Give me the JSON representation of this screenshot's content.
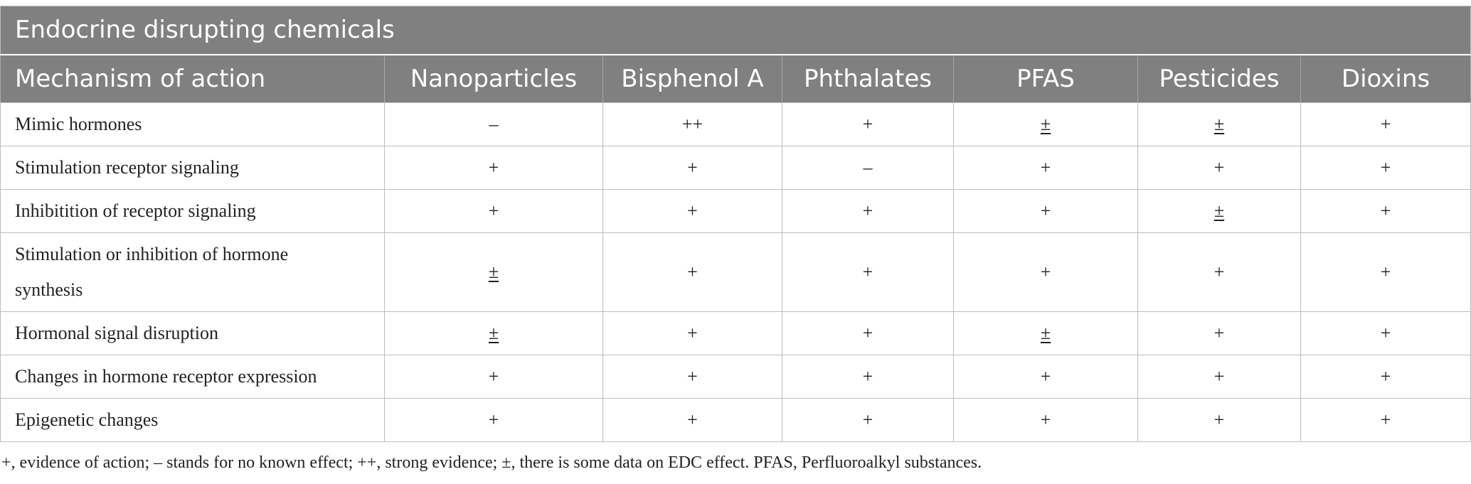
{
  "table": {
    "caption": "Endocrine disrupting chemicals",
    "columns": [
      "Mechanism of action",
      "Nanoparticles",
      "Bisphenol A",
      "Phthalates",
      "PFAS",
      "Pesticides",
      "Dioxins"
    ],
    "rows": [
      {
        "label": "Mimic hormones",
        "cells": [
          "–",
          "++",
          "+",
          "±",
          "±",
          "+"
        ]
      },
      {
        "label": "Stimulation receptor signaling",
        "cells": [
          "+",
          "+",
          "–",
          "+",
          "+",
          "+"
        ]
      },
      {
        "label": "Inhibitition of receptor signaling",
        "cells": [
          "+",
          "+",
          "+",
          "+",
          "±",
          "+"
        ]
      },
      {
        "label": "Stimulation or inhibition of hormone synthesis",
        "cells": [
          "±",
          "+",
          "+",
          "+",
          "+",
          "+"
        ]
      },
      {
        "label": "Hormonal signal disruption",
        "cells": [
          "±",
          "+",
          "+",
          "±",
          "+",
          "+"
        ]
      },
      {
        "label": "Changes in hormone receptor expression",
        "cells": [
          "+",
          "+",
          "+",
          "+",
          "+",
          "+"
        ]
      },
      {
        "label": "Epigenetic changes",
        "cells": [
          "+",
          "+",
          "+",
          "+",
          "+",
          "+"
        ]
      }
    ]
  },
  "footnote": "+, evidence of action; – stands for no known effect; ++, strong evidence; ±, there is some data on EDC effect. PFAS, Perfluoroalkyl substances."
}
